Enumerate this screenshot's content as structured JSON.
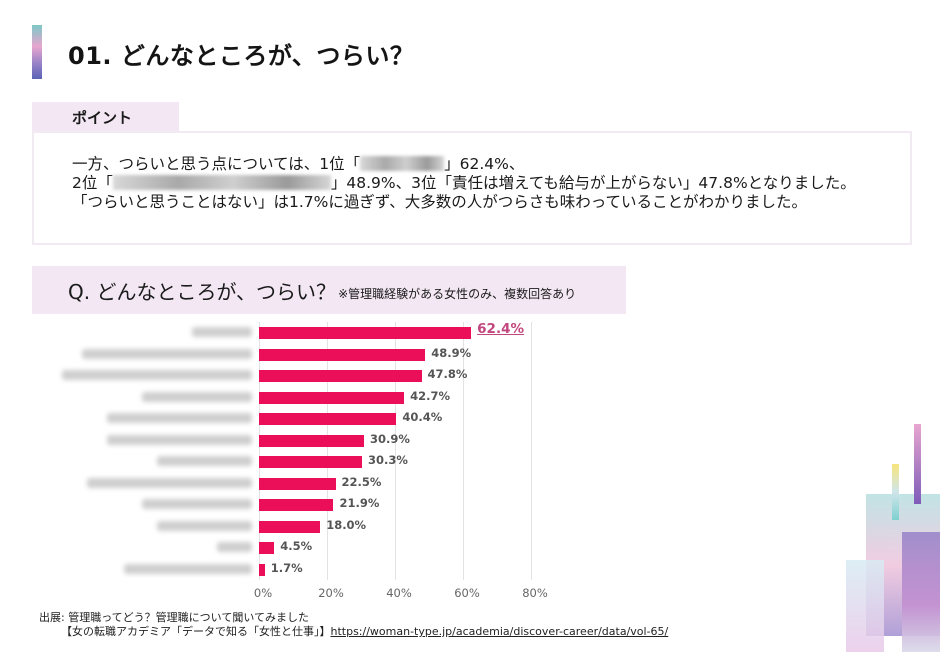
{
  "header": {
    "title": "01. どんなところが、つらい？",
    "accent_gradient": [
      "#7ec8c6",
      "#e7a6cf",
      "#9a84c8",
      "#5b63b5"
    ]
  },
  "point": {
    "tab_label": "ポイント",
    "line1_a": "一方、つらいと思う点については、1位「",
    "line1_b": "」62.4%、",
    "line2_a": "2位「",
    "line2_b": "」48.9%、3位「責任は増えても給与が上がらない」47.8%となりました。",
    "line3": "「つらいと思うことはない」は1.7%に過ぎず、大多数の人がつらさも味わっていることがわかりました。"
  },
  "question": {
    "main": "Q.  どんなところが、つらい？",
    "note": "※管理職経験がある女性のみ、複数回答あり"
  },
  "chart_data": {
    "type": "bar",
    "orientation": "horizontal",
    "title": "どんなところが、つらい？",
    "subtitle": "※管理職経験がある女性のみ、複数回答あり",
    "categories": [
      "(blurred)",
      "(blurred)",
      "責任は増えても給与が上がらない",
      "(blurred)",
      "(blurred)",
      "(blurred)",
      "(blurred)",
      "(blurred)",
      "(blurred)",
      "(blurred)",
      "(blurred)",
      "つらいと思うことはない"
    ],
    "values": [
      62.4,
      48.9,
      47.8,
      42.7,
      40.4,
      30.9,
      30.3,
      22.5,
      21.9,
      18.0,
      4.5,
      1.7
    ],
    "value_labels": [
      "62.4%",
      "48.9%",
      "47.8%",
      "42.7%",
      "40.4%",
      "30.9%",
      "30.3%",
      "22.5%",
      "21.9%",
      "18.0%",
      "4.5%",
      "1.7%"
    ],
    "xlabel": "",
    "ylabel": "",
    "xlim": [
      0,
      80
    ],
    "xticks": [
      "0%",
      "20%",
      "40%",
      "60%",
      "80%"
    ],
    "grid": true,
    "bar_color": "#eb0f5a",
    "highlight_label_color": "#c2477e"
  },
  "source": {
    "label": "出展: 管理職ってどう？管理職について聞いてみました",
    "line2_prefix": "【女の転職アカデミア「データで知る「女性と仕事」】",
    "url": "https://woman-type.jp/academia/discover-career/data/vol-65/"
  }
}
